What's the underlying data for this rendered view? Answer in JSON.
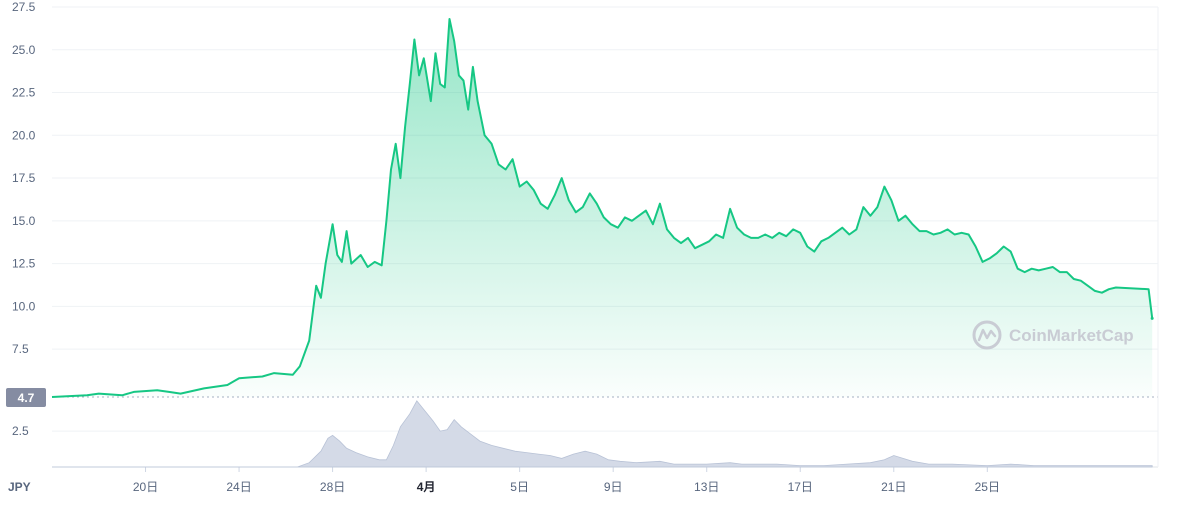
{
  "chart_data": {
    "type": "area",
    "unit_label": "JPY",
    "current_price_label": "4.7",
    "watermark": "CoinMarketCap",
    "price_axis": {
      "ticks": [
        "27.5",
        "25.0",
        "22.5",
        "20.0",
        "17.5",
        "15.0",
        "12.5",
        "10.0",
        "7.5"
      ],
      "range": [
        4.7,
        27.5
      ]
    },
    "volume_axis": {
      "ticks": [
        "2.5"
      ]
    },
    "x_tick_labels": [
      {
        "label": "20日",
        "day": 4,
        "bold": false
      },
      {
        "label": "24日",
        "day": 8,
        "bold": false
      },
      {
        "label": "28日",
        "day": 12,
        "bold": false
      },
      {
        "label": "4月",
        "day": 16,
        "bold": true
      },
      {
        "label": "5日",
        "day": 20,
        "bold": false
      },
      {
        "label": "9日",
        "day": 24,
        "bold": false
      },
      {
        "label": "13日",
        "day": 28,
        "bold": false
      },
      {
        "label": "17日",
        "day": 32,
        "bold": false
      },
      {
        "label": "21日",
        "day": 36,
        "bold": false
      },
      {
        "label": "25日",
        "day": 40,
        "bold": false
      }
    ],
    "x_range": [
      0,
      47.3
    ],
    "price_series": {
      "name": "",
      "color": "#16c784",
      "points": [
        [
          0,
          4.7
        ],
        [
          1.5,
          4.8
        ],
        [
          2,
          4.9
        ],
        [
          3,
          4.8
        ],
        [
          3.5,
          5.0
        ],
        [
          4.5,
          5.1
        ],
        [
          5,
          5.0
        ],
        [
          5.5,
          4.9
        ],
        [
          6.5,
          5.2
        ],
        [
          7.5,
          5.4
        ],
        [
          8,
          5.8
        ],
        [
          9,
          5.9
        ],
        [
          9.5,
          6.1
        ],
        [
          10.3,
          6.0
        ],
        [
          10.6,
          6.5
        ],
        [
          11,
          8.0
        ],
        [
          11.3,
          11.2
        ],
        [
          11.5,
          10.5
        ],
        [
          11.7,
          12.5
        ],
        [
          12.0,
          14.8
        ],
        [
          12.2,
          13.0
        ],
        [
          12.4,
          12.6
        ],
        [
          12.6,
          14.4
        ],
        [
          12.8,
          12.5
        ],
        [
          13.2,
          13.0
        ],
        [
          13.5,
          12.3
        ],
        [
          13.8,
          12.6
        ],
        [
          14.1,
          12.4
        ],
        [
          14.3,
          15.0
        ],
        [
          14.5,
          18.0
        ],
        [
          14.7,
          19.5
        ],
        [
          14.9,
          17.5
        ],
        [
          15.1,
          20.5
        ],
        [
          15.3,
          23.0
        ],
        [
          15.5,
          25.6
        ],
        [
          15.7,
          23.5
        ],
        [
          15.9,
          24.5
        ],
        [
          16.2,
          22.0
        ],
        [
          16.4,
          24.8
        ],
        [
          16.6,
          23.0
        ],
        [
          16.8,
          22.8
        ],
        [
          17.0,
          26.8
        ],
        [
          17.2,
          25.5
        ],
        [
          17.4,
          23.5
        ],
        [
          17.6,
          23.2
        ],
        [
          17.8,
          21.5
        ],
        [
          18.0,
          24.0
        ],
        [
          18.2,
          22.0
        ],
        [
          18.5,
          20.0
        ],
        [
          18.8,
          19.5
        ],
        [
          19.1,
          18.3
        ],
        [
          19.4,
          18.0
        ],
        [
          19.7,
          18.6
        ],
        [
          20.0,
          17.0
        ],
        [
          20.3,
          17.3
        ],
        [
          20.6,
          16.8
        ],
        [
          20.9,
          16.0
        ],
        [
          21.2,
          15.7
        ],
        [
          21.5,
          16.5
        ],
        [
          21.8,
          17.5
        ],
        [
          22.1,
          16.2
        ],
        [
          22.4,
          15.5
        ],
        [
          22.7,
          15.8
        ],
        [
          23.0,
          16.6
        ],
        [
          23.3,
          16.0
        ],
        [
          23.6,
          15.2
        ],
        [
          23.9,
          14.8
        ],
        [
          24.2,
          14.6
        ],
        [
          24.5,
          15.2
        ],
        [
          24.8,
          15.0
        ],
        [
          25.1,
          15.3
        ],
        [
          25.4,
          15.6
        ],
        [
          25.7,
          14.8
        ],
        [
          26.0,
          16.0
        ],
        [
          26.3,
          14.5
        ],
        [
          26.6,
          14.0
        ],
        [
          26.9,
          13.7
        ],
        [
          27.2,
          14.0
        ],
        [
          27.5,
          13.4
        ],
        [
          27.8,
          13.6
        ],
        [
          28.1,
          13.8
        ],
        [
          28.4,
          14.2
        ],
        [
          28.7,
          14.0
        ],
        [
          29.0,
          15.7
        ],
        [
          29.3,
          14.6
        ],
        [
          29.6,
          14.2
        ],
        [
          29.9,
          14.0
        ],
        [
          30.2,
          14.0
        ],
        [
          30.5,
          14.2
        ],
        [
          30.8,
          14.0
        ],
        [
          31.1,
          14.3
        ],
        [
          31.4,
          14.1
        ],
        [
          31.7,
          14.5
        ],
        [
          32.0,
          14.3
        ],
        [
          32.3,
          13.5
        ],
        [
          32.6,
          13.2
        ],
        [
          32.9,
          13.8
        ],
        [
          33.2,
          14.0
        ],
        [
          33.5,
          14.3
        ],
        [
          33.8,
          14.6
        ],
        [
          34.1,
          14.2
        ],
        [
          34.4,
          14.5
        ],
        [
          34.7,
          15.8
        ],
        [
          35.0,
          15.3
        ],
        [
          35.3,
          15.8
        ],
        [
          35.6,
          17.0
        ],
        [
          35.9,
          16.2
        ],
        [
          36.2,
          15.0
        ],
        [
          36.5,
          15.3
        ],
        [
          36.8,
          14.8
        ],
        [
          37.1,
          14.4
        ],
        [
          37.4,
          14.4
        ],
        [
          37.7,
          14.2
        ],
        [
          38.0,
          14.3
        ],
        [
          38.3,
          14.5
        ],
        [
          38.6,
          14.2
        ],
        [
          38.9,
          14.3
        ],
        [
          39.2,
          14.2
        ],
        [
          39.5,
          13.5
        ],
        [
          39.8,
          12.6
        ],
        [
          40.1,
          12.8
        ],
        [
          40.4,
          13.1
        ],
        [
          40.7,
          13.5
        ],
        [
          41.0,
          13.2
        ],
        [
          41.3,
          12.2
        ],
        [
          41.6,
          12.0
        ],
        [
          41.9,
          12.2
        ],
        [
          42.2,
          12.1
        ],
        [
          42.5,
          12.2
        ],
        [
          42.8,
          12.3
        ],
        [
          43.1,
          12.0
        ],
        [
          43.4,
          12.0
        ],
        [
          43.7,
          11.6
        ],
        [
          44.0,
          11.5
        ],
        [
          44.3,
          11.2
        ],
        [
          44.6,
          10.9
        ],
        [
          44.9,
          10.8
        ],
        [
          45.2,
          11.0
        ],
        [
          45.5,
          11.1
        ],
        [
          46.9,
          11.0
        ],
        [
          47.05,
          9.3
        ]
      ]
    },
    "volume_series": {
      "name": "",
      "color": "#cfd6e4",
      "points": [
        [
          0,
          0.0
        ],
        [
          10.5,
          0.0
        ],
        [
          11.0,
          0.3
        ],
        [
          11.5,
          1.1
        ],
        [
          11.8,
          2.0
        ],
        [
          12.0,
          2.2
        ],
        [
          12.3,
          1.8
        ],
        [
          12.6,
          1.3
        ],
        [
          13.0,
          1.0
        ],
        [
          13.5,
          0.7
        ],
        [
          14.0,
          0.5
        ],
        [
          14.3,
          0.5
        ],
        [
          14.6,
          1.5
        ],
        [
          14.9,
          2.8
        ],
        [
          15.3,
          3.7
        ],
        [
          15.6,
          4.6
        ],
        [
          15.9,
          4.0
        ],
        [
          16.3,
          3.2
        ],
        [
          16.6,
          2.5
        ],
        [
          16.9,
          2.6
        ],
        [
          17.2,
          3.3
        ],
        [
          17.5,
          2.8
        ],
        [
          17.9,
          2.3
        ],
        [
          18.3,
          1.8
        ],
        [
          18.8,
          1.5
        ],
        [
          19.3,
          1.3
        ],
        [
          19.8,
          1.1
        ],
        [
          20.3,
          1.0
        ],
        [
          20.8,
          0.9
        ],
        [
          21.3,
          0.8
        ],
        [
          21.8,
          0.6
        ],
        [
          22.3,
          0.9
        ],
        [
          22.8,
          1.1
        ],
        [
          23.3,
          0.9
        ],
        [
          23.8,
          0.5
        ],
        [
          24.3,
          0.4
        ],
        [
          25.0,
          0.3
        ],
        [
          26.0,
          0.4
        ],
        [
          26.6,
          0.2
        ],
        [
          27.0,
          0.2
        ],
        [
          28.0,
          0.2
        ],
        [
          29.0,
          0.3
        ],
        [
          29.5,
          0.2
        ],
        [
          31.0,
          0.2
        ],
        [
          32.0,
          0.1
        ],
        [
          33.0,
          0.1
        ],
        [
          34.0,
          0.2
        ],
        [
          35.0,
          0.3
        ],
        [
          35.6,
          0.5
        ],
        [
          36.0,
          0.8
        ],
        [
          36.4,
          0.6
        ],
        [
          36.8,
          0.4
        ],
        [
          37.5,
          0.2
        ],
        [
          38.5,
          0.2
        ],
        [
          40.0,
          0.1
        ],
        [
          41.0,
          0.2
        ],
        [
          42.0,
          0.1
        ],
        [
          43.0,
          0.1
        ],
        [
          44.0,
          0.1
        ],
        [
          45.0,
          0.1
        ],
        [
          47.05,
          0.1
        ]
      ],
      "range": [
        0,
        4.8
      ]
    }
  }
}
